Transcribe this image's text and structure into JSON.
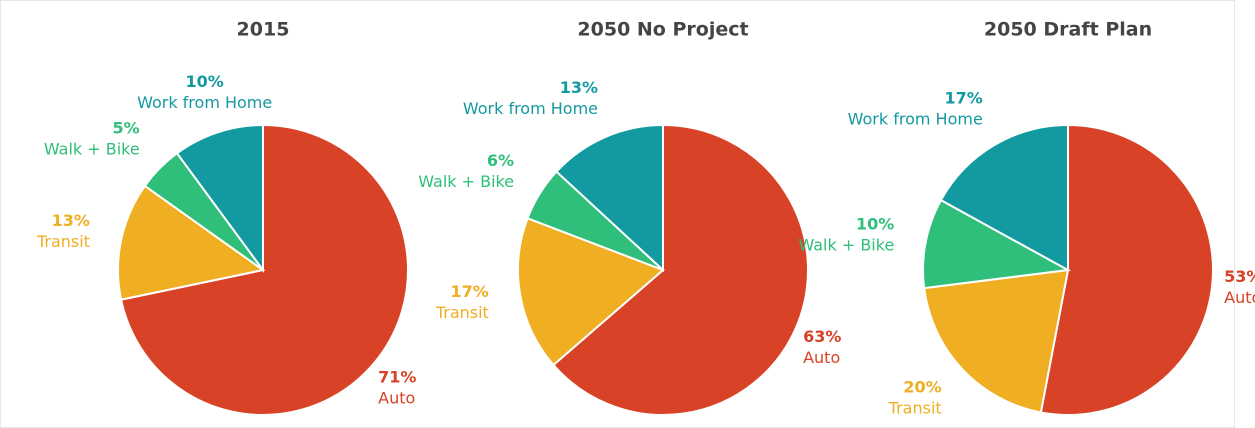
{
  "chart_data": [
    {
      "type": "pie",
      "title": "2015",
      "categories": [
        "Auto",
        "Transit",
        "Walk + Bike",
        "Work from Home"
      ],
      "values": [
        71,
        13,
        5,
        10
      ],
      "value_labels": [
        "71%",
        "13%",
        "5%",
        "10%"
      ],
      "colors": [
        "#d84226",
        "#f0ae22",
        "#2fbf7a",
        "#139aa0"
      ]
    },
    {
      "type": "pie",
      "title": "2050 No Project",
      "categories": [
        "Auto",
        "Transit",
        "Walk + Bike",
        "Work from Home"
      ],
      "values": [
        63,
        17,
        6,
        13
      ],
      "value_labels": [
        "63%",
        "17%",
        "6%",
        "13%"
      ],
      "colors": [
        "#d84226",
        "#f0ae22",
        "#2fbf7a",
        "#139aa0"
      ]
    },
    {
      "type": "pie",
      "title": "2050 Draft Plan",
      "categories": [
        "Auto",
        "Transit",
        "Walk + Bike",
        "Work from Home"
      ],
      "values": [
        53,
        20,
        10,
        17
      ],
      "value_labels": [
        "53%",
        "20%",
        "10%",
        "17%"
      ],
      "colors": [
        "#d84226",
        "#f0ae22",
        "#2fbf7a",
        "#139aa0"
      ]
    }
  ]
}
